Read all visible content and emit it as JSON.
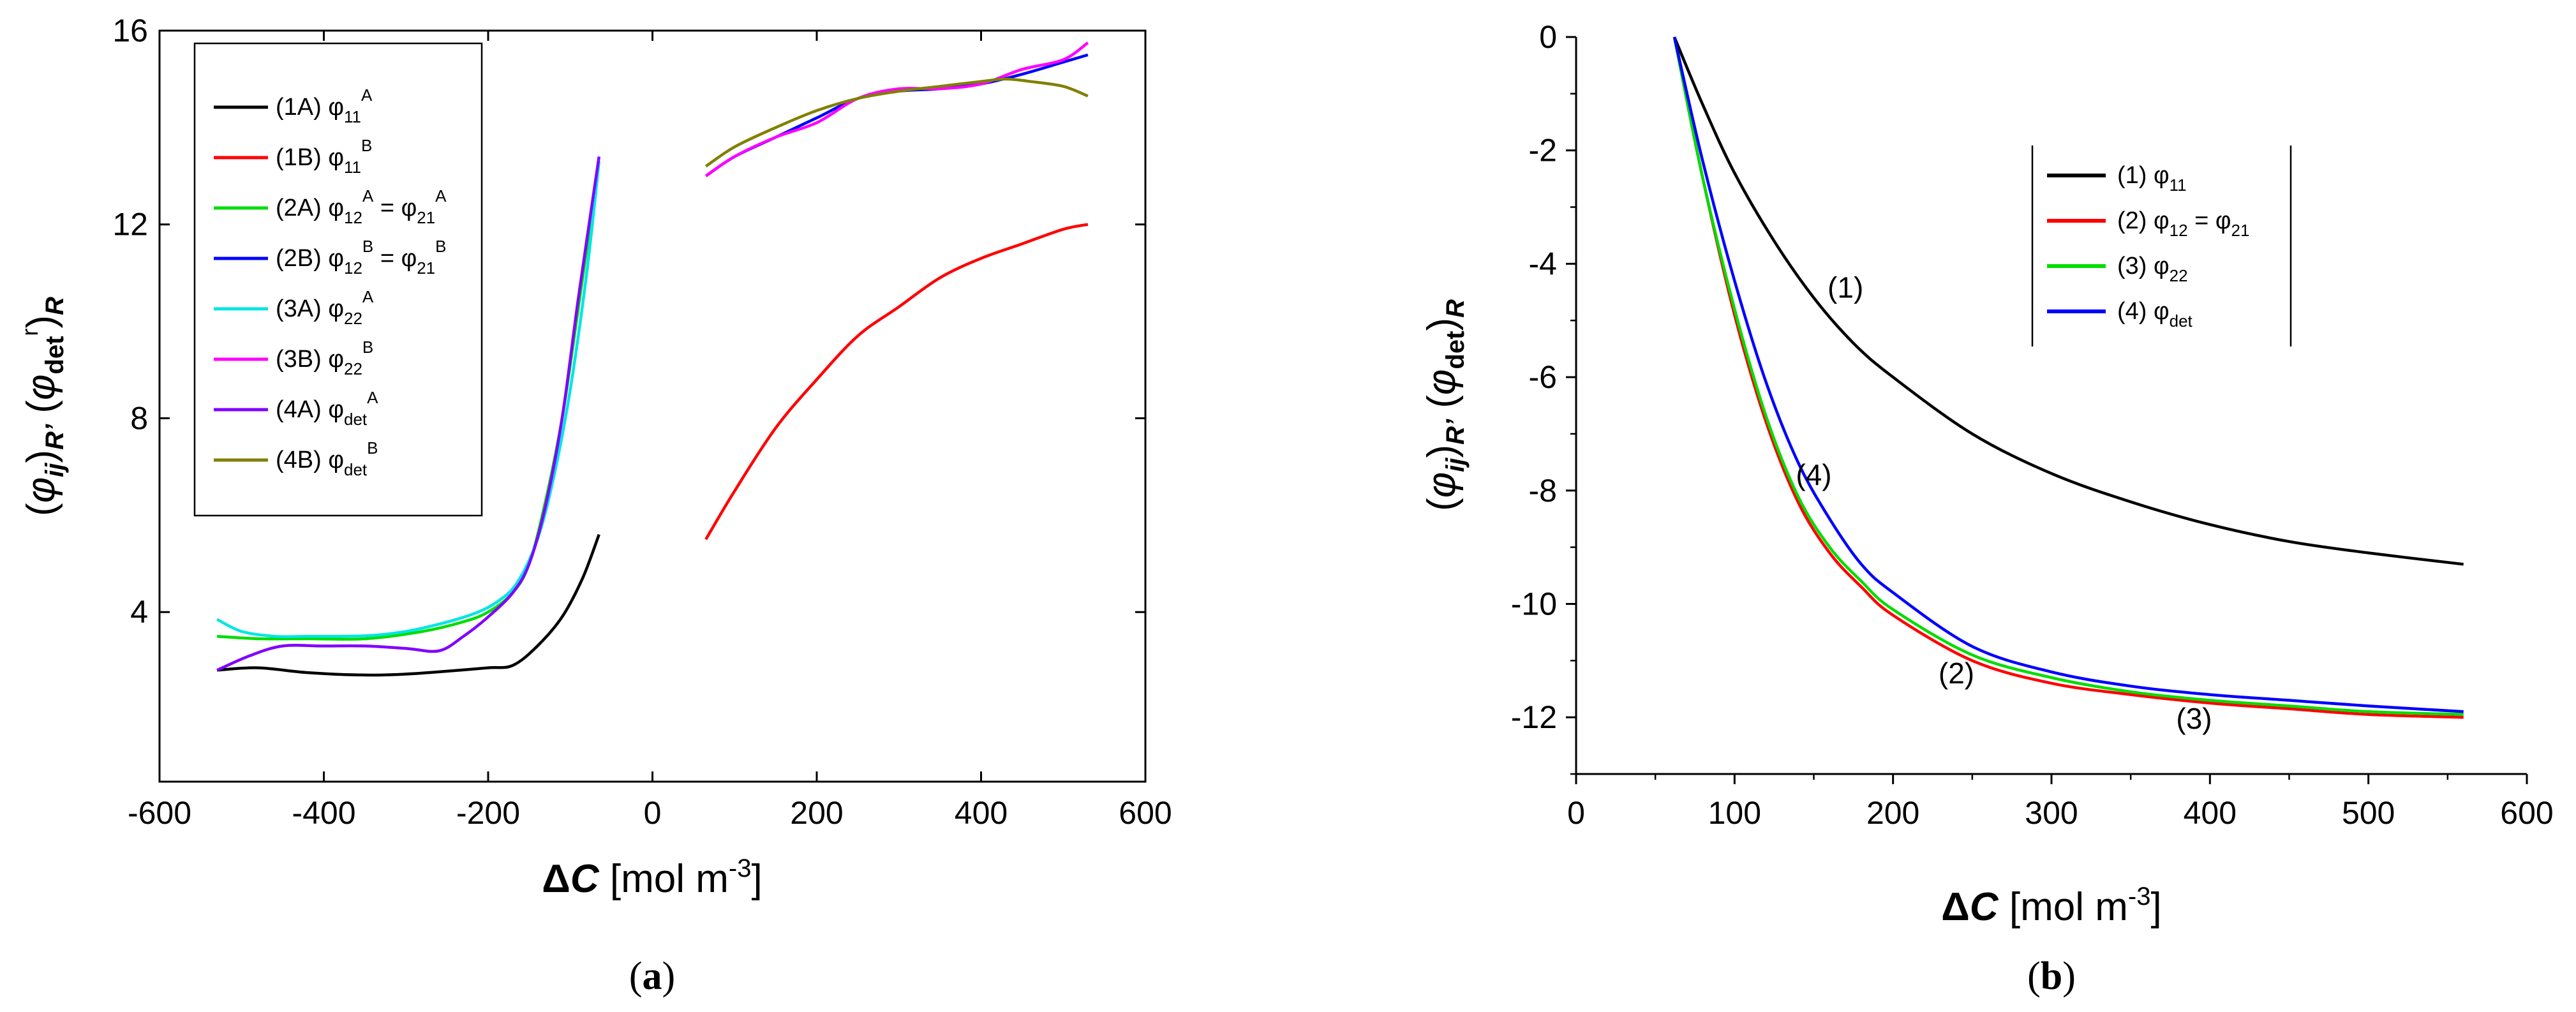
{
  "chart_data": [
    {
      "panel": "(a)",
      "type": "line",
      "xlabel": "ΔC [mol m⁻³]",
      "ylabel": "(φij)R’ (φdet r)R",
      "xlim": [
        -600,
        600
      ],
      "ylim": [
        0.5,
        16
      ],
      "xticks": [
        -600,
        -400,
        -200,
        0,
        200,
        400,
        600
      ],
      "yticks": [
        4,
        8,
        12,
        16
      ],
      "legend_position": "top-left",
      "series": [
        {
          "name": "(1A) φ11 A",
          "color": "#000000",
          "points": [
            [
              -530,
              2.8
            ],
            [
              -480,
              2.85
            ],
            [
              -420,
              2.75
            ],
            [
              -350,
              2.7
            ],
            [
              -300,
              2.72
            ],
            [
              -250,
              2.78
            ],
            [
              -200,
              2.85
            ],
            [
              -170,
              2.9
            ],
            [
              -140,
              3.3
            ],
            [
              -110,
              3.9
            ],
            [
              -85,
              4.7
            ],
            [
              -65,
              5.6
            ]
          ]
        },
        {
          "name": "(1B) φ11 B",
          "color": "#ff0000",
          "points": [
            [
              65,
              5.5
            ],
            [
              100,
              6.5
            ],
            [
              150,
              7.8
            ],
            [
              200,
              8.8
            ],
            [
              250,
              9.7
            ],
            [
              300,
              10.3
            ],
            [
              350,
              10.9
            ],
            [
              400,
              11.3
            ],
            [
              450,
              11.6
            ],
            [
              500,
              11.9
            ],
            [
              530,
              12.0
            ]
          ]
        },
        {
          "name": "(2A) φ12 A = φ21 A",
          "color": "#00dd00",
          "points": [
            [
              -530,
              3.5
            ],
            [
              -480,
              3.45
            ],
            [
              -420,
              3.45
            ],
            [
              -350,
              3.45
            ],
            [
              -280,
              3.6
            ],
            [
              -230,
              3.8
            ],
            [
              -200,
              4.0
            ],
            [
              -170,
              4.4
            ],
            [
              -150,
              5.0
            ],
            [
              -130,
              6.3
            ],
            [
              -110,
              8.0
            ],
            [
              -90,
              10.3
            ],
            [
              -65,
              13.3
            ]
          ]
        },
        {
          "name": "(2B) φ12 B = φ21 B",
          "color": "#0000ff",
          "points": [
            [
              65,
              13.0
            ],
            [
              100,
              13.4
            ],
            [
              150,
              13.8
            ],
            [
              200,
              14.2
            ],
            [
              250,
              14.6
            ],
            [
              300,
              14.75
            ],
            [
              350,
              14.8
            ],
            [
              400,
              14.9
            ],
            [
              450,
              15.1
            ],
            [
              500,
              15.35
            ],
            [
              530,
              15.5
            ]
          ]
        },
        {
          "name": "(3A) φ22 A",
          "color": "#00e5e5",
          "points": [
            [
              -530,
              3.85
            ],
            [
              -500,
              3.6
            ],
            [
              -460,
              3.5
            ],
            [
              -420,
              3.5
            ],
            [
              -380,
              3.5
            ],
            [
              -340,
              3.52
            ],
            [
              -300,
              3.6
            ],
            [
              -260,
              3.75
            ],
            [
              -220,
              3.95
            ],
            [
              -190,
              4.2
            ],
            [
              -165,
              4.6
            ],
            [
              -140,
              5.5
            ],
            [
              -120,
              6.8
            ],
            [
              -100,
              8.6
            ],
            [
              -80,
              11.0
            ],
            [
              -65,
              13.3
            ]
          ]
        },
        {
          "name": "(3B) φ22 B",
          "color": "#ff00ff",
          "points": [
            [
              65,
              13.0
            ],
            [
              100,
              13.4
            ],
            [
              150,
              13.8
            ],
            [
              200,
              14.1
            ],
            [
              250,
              14.6
            ],
            [
              300,
              14.8
            ],
            [
              350,
              14.8
            ],
            [
              400,
              14.9
            ],
            [
              450,
              15.2
            ],
            [
              500,
              15.4
            ],
            [
              530,
              15.75
            ]
          ]
        },
        {
          "name": "(4A) φdet A",
          "color": "#8000ff",
          "points": [
            [
              -530,
              2.8
            ],
            [
              -490,
              3.1
            ],
            [
              -450,
              3.3
            ],
            [
              -400,
              3.3
            ],
            [
              -350,
              3.3
            ],
            [
              -300,
              3.25
            ],
            [
              -260,
              3.2
            ],
            [
              -230,
              3.5
            ],
            [
              -200,
              3.9
            ],
            [
              -170,
              4.4
            ],
            [
              -150,
              5.0
            ],
            [
              -130,
              6.2
            ],
            [
              -110,
              8.0
            ],
            [
              -90,
              10.5
            ],
            [
              -65,
              13.4
            ]
          ]
        },
        {
          "name": "(4B) φdet B",
          "color": "#808000",
          "points": [
            [
              65,
              13.2
            ],
            [
              100,
              13.6
            ],
            [
              150,
              14.0
            ],
            [
              200,
              14.35
            ],
            [
              250,
              14.6
            ],
            [
              300,
              14.75
            ],
            [
              350,
              14.85
            ],
            [
              400,
              14.95
            ],
            [
              430,
              15.0
            ],
            [
              460,
              14.95
            ],
            [
              500,
              14.85
            ],
            [
              530,
              14.65
            ]
          ]
        }
      ]
    },
    {
      "panel": "(b)",
      "type": "line",
      "xlabel": "ΔC [mol m⁻³]",
      "ylabel": "(φij)R’ (φdet)R",
      "xlim": [
        0,
        600
      ],
      "ylim": [
        -13,
        0
      ],
      "xticks": [
        0,
        100,
        200,
        300,
        400,
        500,
        600
      ],
      "yticks": [
        0,
        -2,
        -4,
        -6,
        -8,
        -10,
        -12
      ],
      "legend_position": "top-right",
      "series": [
        {
          "name": "(1) φ11",
          "color": "#000000",
          "points": [
            [
              62,
              0
            ],
            [
              80,
              -1.2
            ],
            [
              100,
              -2.4
            ],
            [
              125,
              -3.6
            ],
            [
              150,
              -4.6
            ],
            [
              175,
              -5.4
            ],
            [
              200,
              -6.0
            ],
            [
              250,
              -7.0
            ],
            [
              300,
              -7.7
            ],
            [
              350,
              -8.2
            ],
            [
              400,
              -8.6
            ],
            [
              450,
              -8.9
            ],
            [
              500,
              -9.1
            ],
            [
              560,
              -9.3
            ]
          ]
        },
        {
          "name": "(2) φ12 = φ21",
          "color": "#ff0000",
          "points": [
            [
              62,
              0
            ],
            [
              80,
              -2.5
            ],
            [
              100,
              -4.9
            ],
            [
              120,
              -6.8
            ],
            [
              140,
              -8.2
            ],
            [
              160,
              -9.1
            ],
            [
              180,
              -9.7
            ],
            [
              200,
              -10.2
            ],
            [
              250,
              -11.0
            ],
            [
              300,
              -11.4
            ],
            [
              350,
              -11.6
            ],
            [
              400,
              -11.75
            ],
            [
              450,
              -11.85
            ],
            [
              500,
              -11.95
            ],
            [
              560,
              -12.0
            ]
          ]
        },
        {
          "name": "(3) φ22",
          "color": "#00dd00",
          "points": [
            [
              62,
              0
            ],
            [
              80,
              -2.5
            ],
            [
              100,
              -4.8
            ],
            [
              120,
              -6.7
            ],
            [
              140,
              -8.1
            ],
            [
              160,
              -9.0
            ],
            [
              180,
              -9.6
            ],
            [
              200,
              -10.1
            ],
            [
              250,
              -10.9
            ],
            [
              300,
              -11.3
            ],
            [
              350,
              -11.55
            ],
            [
              400,
              -11.7
            ],
            [
              450,
              -11.8
            ],
            [
              500,
              -11.9
            ],
            [
              560,
              -11.95
            ]
          ]
        },
        {
          "name": "(4) φdet",
          "color": "#0000ff",
          "points": [
            [
              62,
              0
            ],
            [
              80,
              -2.2
            ],
            [
              100,
              -4.3
            ],
            [
              120,
              -6.1
            ],
            [
              140,
              -7.5
            ],
            [
              160,
              -8.5
            ],
            [
              180,
              -9.3
            ],
            [
              200,
              -9.8
            ],
            [
              250,
              -10.75
            ],
            [
              300,
              -11.2
            ],
            [
              350,
              -11.45
            ],
            [
              400,
              -11.6
            ],
            [
              450,
              -11.7
            ],
            [
              500,
              -11.8
            ],
            [
              560,
              -11.9
            ]
          ]
        }
      ],
      "annotations": [
        {
          "text": "(1)",
          "x": 170,
          "y": -4.6
        },
        {
          "text": "(4)",
          "x": 150,
          "y": -7.9
        },
        {
          "text": "(2)",
          "x": 240,
          "y": -11.4
        },
        {
          "text": "(3)",
          "x": 390,
          "y": -12.2
        }
      ]
    }
  ],
  "legend_a": [
    {
      "prefix": "(1A) φ",
      "sub": "11",
      "sup": "A"
    },
    {
      "prefix": "(1B) φ",
      "sub": "11",
      "sup": "B"
    },
    {
      "prefix": "(2A) φ",
      "sub": "12",
      "sup": "A",
      "suffix": " = φ",
      "sub2": "21",
      "sup2": "A"
    },
    {
      "prefix": "(2B) φ",
      "sub": "12",
      "sup": "B",
      "suffix": " = φ",
      "sub2": "21",
      "sup2": "B"
    },
    {
      "prefix": "(3A) φ",
      "sub": "22",
      "sup": "A"
    },
    {
      "prefix": "(3B) φ",
      "sub": "22",
      "sup": "B"
    },
    {
      "prefix": "(4A) φ",
      "sub": "det",
      "sup": "A"
    },
    {
      "prefix": "(4B) φ",
      "sub": "det",
      "sup": "B"
    }
  ],
  "legend_b": [
    {
      "prefix": "(1)  φ",
      "sub": "11"
    },
    {
      "prefix": "(2)  φ",
      "sub": "12",
      "suffix": " = φ",
      "sub2": "21"
    },
    {
      "prefix": "(3)  φ",
      "sub": "22"
    },
    {
      "prefix": "(4)  φ",
      "sub": "det"
    }
  ],
  "captions": {
    "a": "a",
    "b": "b"
  }
}
